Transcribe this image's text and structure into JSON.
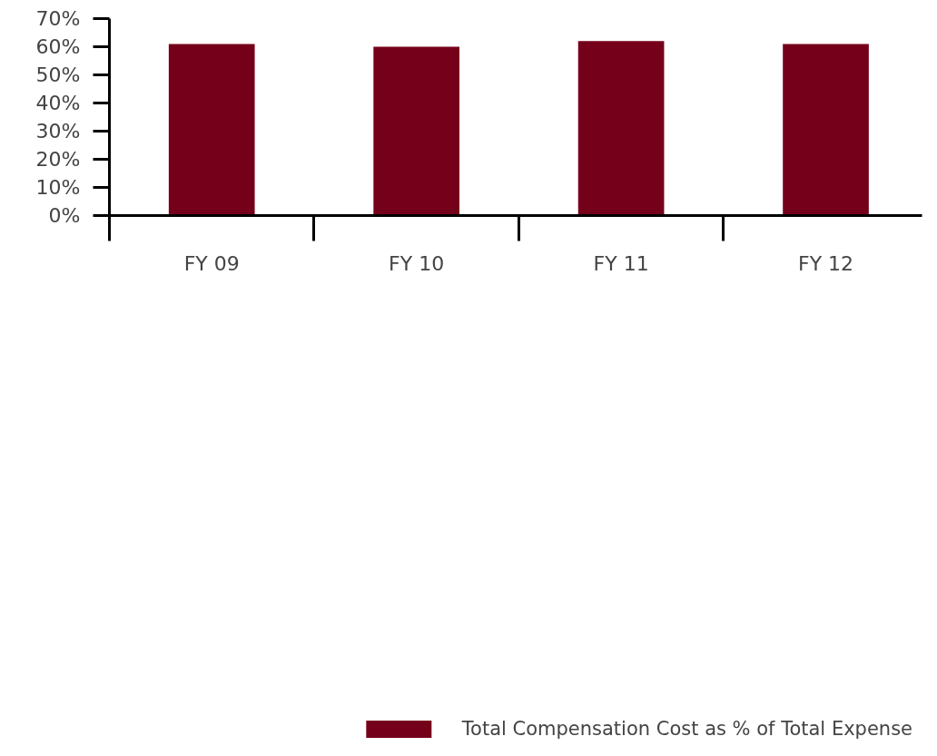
{
  "chart_data": {
    "type": "bar",
    "categories": [
      "FY 09",
      "FY 10",
      "FY 11",
      "FY 12"
    ],
    "series": [
      {
        "name": "Total Compensation Cost as % of Total Expense",
        "color": "#75001a",
        "values": [
          61,
          60,
          62,
          61
        ]
      }
    ],
    "ylim": [
      0,
      70
    ],
    "yticks": [
      {
        "value": 0,
        "label": "0%"
      },
      {
        "value": 10,
        "label": "10%"
      },
      {
        "value": 20,
        "label": "20%"
      },
      {
        "value": 30,
        "label": "30%"
      },
      {
        "value": 40,
        "label": "40%"
      },
      {
        "value": 50,
        "label": "50%"
      },
      {
        "value": 60,
        "label": "60%"
      },
      {
        "value": 70,
        "label": "70%"
      }
    ],
    "grid": false,
    "legend": "bottom"
  }
}
